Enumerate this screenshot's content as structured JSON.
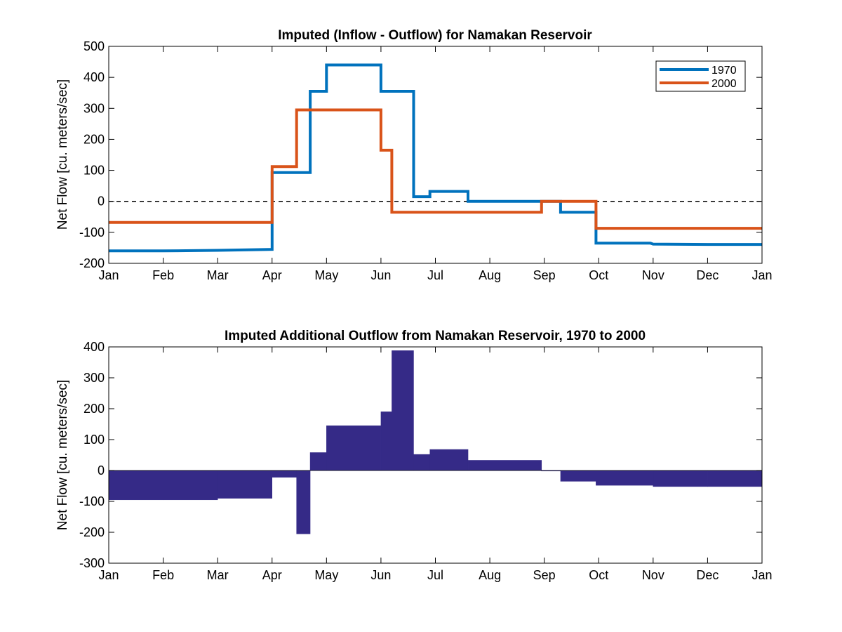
{
  "chart_data": [
    {
      "type": "line",
      "title": "Imputed (Inflow - Outflow) for Namakan Reservoir",
      "xlabel": "",
      "ylabel": "Net Flow [cu. meters/sec]",
      "x_tick_labels": [
        "Jan",
        "Feb",
        "Mar",
        "Apr",
        "May",
        "Jun",
        "Jul",
        "Aug",
        "Sep",
        "Oct",
        "Nov",
        "Dec",
        "Jan"
      ],
      "xlim": [
        0,
        12
      ],
      "ylim": [
        -200,
        500
      ],
      "y_ticks": [
        "-200",
        "-100",
        "0",
        "100",
        "200",
        "300",
        "400",
        "500"
      ],
      "zero_line": "dashed",
      "grid": false,
      "legend_position": "top-right",
      "series": [
        {
          "name": "1970",
          "color": "#0072BD",
          "points": [
            [
              0,
              -160
            ],
            [
              1,
              -160
            ],
            [
              2,
              -158
            ],
            [
              3.0,
              -155
            ],
            [
              3.0,
              93
            ],
            [
              3.7,
              93
            ],
            [
              3.7,
              355
            ],
            [
              4.0,
              355
            ],
            [
              4.0,
              440
            ],
            [
              4.5,
              440
            ],
            [
              5.0,
              440
            ],
            [
              5.0,
              355
            ],
            [
              5.6,
              355
            ],
            [
              5.6,
              15
            ],
            [
              5.9,
              15
            ],
            [
              5.9,
              32
            ],
            [
              6.6,
              32
            ],
            [
              6.6,
              0
            ],
            [
              8.3,
              0
            ],
            [
              8.3,
              -35
            ],
            [
              8.95,
              -35
            ],
            [
              8.95,
              -135
            ],
            [
              9.95,
              -135
            ],
            [
              10,
              -138
            ],
            [
              11,
              -139
            ],
            [
              12,
              -139
            ]
          ]
        },
        {
          "name": "2000",
          "color": "#D95319",
          "points": [
            [
              0,
              -68
            ],
            [
              3.0,
              -68
            ],
            [
              3.0,
              112
            ],
            [
              3.45,
              112
            ],
            [
              3.45,
              295
            ],
            [
              5.0,
              295
            ],
            [
              5.0,
              165
            ],
            [
              5.2,
              165
            ],
            [
              5.2,
              -35
            ],
            [
              7.95,
              -35
            ],
            [
              7.95,
              0
            ],
            [
              8.95,
              0
            ],
            [
              8.95,
              -87
            ],
            [
              12,
              -87
            ]
          ]
        }
      ]
    },
    {
      "type": "area",
      "title": "Imputed Additional Outflow from Namakan Reservoir, 1970 to 2000",
      "xlabel": "",
      "ylabel": "Net Flow [cu. meters/sec]",
      "x_tick_labels": [
        "Jan",
        "Feb",
        "Mar",
        "Apr",
        "May",
        "Jun",
        "Jul",
        "Aug",
        "Sep",
        "Oct",
        "Nov",
        "Dec",
        "Jan"
      ],
      "xlim": [
        0,
        12
      ],
      "ylim": [
        -300,
        400
      ],
      "y_ticks": [
        "-300",
        "-200",
        "-100",
        "0",
        "100",
        "200",
        "300",
        "400"
      ],
      "grid": false,
      "fill_color": "#352A87",
      "segments": [
        {
          "x0": 0.0,
          "x1": 1.0,
          "y": -95
        },
        {
          "x0": 1.0,
          "x1": 2.0,
          "y": -95
        },
        {
          "x0": 2.0,
          "x1": 3.0,
          "y": -90
        },
        {
          "x0": 3.0,
          "x1": 3.45,
          "y": -22
        },
        {
          "x0": 3.45,
          "x1": 3.7,
          "y": -205
        },
        {
          "x0": 3.7,
          "x1": 4.0,
          "y": 58
        },
        {
          "x0": 4.0,
          "x1": 5.0,
          "y": 145
        },
        {
          "x0": 5.0,
          "x1": 5.2,
          "y": 190
        },
        {
          "x0": 5.2,
          "x1": 5.6,
          "y": 388
        },
        {
          "x0": 5.6,
          "x1": 5.9,
          "y": 52
        },
        {
          "x0": 5.9,
          "x1": 6.6,
          "y": 68
        },
        {
          "x0": 6.6,
          "x1": 7.95,
          "y": 33
        },
        {
          "x0": 7.95,
          "x1": 8.3,
          "y": 0
        },
        {
          "x0": 8.3,
          "x1": 8.95,
          "y": -35
        },
        {
          "x0": 8.95,
          "x1": 10.0,
          "y": -48
        },
        {
          "x0": 10.0,
          "x1": 11.0,
          "y": -52
        },
        {
          "x0": 11.0,
          "x1": 12.0,
          "y": -52
        }
      ]
    }
  ]
}
